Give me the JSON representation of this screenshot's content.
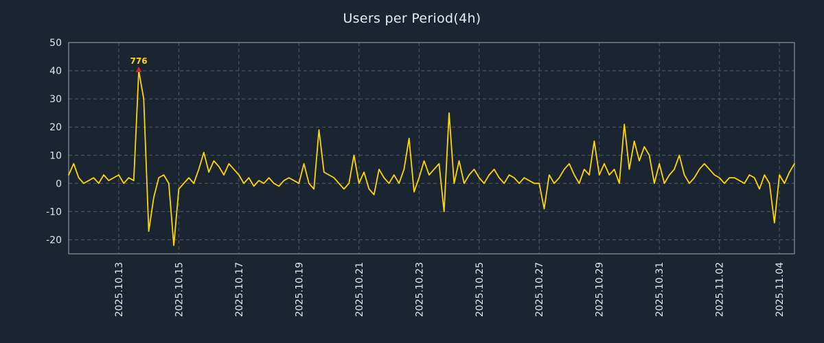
{
  "colors": {
    "background": "#1b2431",
    "line": "#ffd700",
    "grid": "#525a66",
    "axis_border": "#8d949e",
    "text": "#e2e6eb",
    "annotation_text": "#ffd700",
    "marker": "#d62518"
  },
  "chart_data": {
    "type": "line",
    "title": "Users per Period(4h)",
    "xlabel": "",
    "ylabel": "",
    "legend": "none",
    "grid": "dashed",
    "ylim": [
      -25,
      50
    ],
    "y_ticks": [
      50,
      40,
      30,
      20,
      10,
      0,
      -10,
      -20
    ],
    "x_tick_labels": [
      "2025.10.13",
      "2025.10.15",
      "2025.10.17",
      "2025.10.19",
      "2025.10.21",
      "2025.10.23",
      "2025.10.25",
      "2025.10.27",
      "2025.10.29",
      "2025.10.31",
      "2025.11.02",
      "2025.11.04"
    ],
    "x_tick_indices": [
      10,
      22,
      34,
      46,
      58,
      70,
      82,
      94,
      106,
      118,
      130,
      142
    ],
    "values": [
      3,
      7,
      2,
      0,
      1,
      2,
      0,
      3,
      1,
      2,
      3,
      0,
      2,
      1,
      40,
      30,
      -17,
      -5,
      2,
      3,
      0,
      -22,
      -2,
      0,
      2,
      0,
      5,
      11,
      4,
      8,
      6,
      3,
      7,
      5,
      3,
      0,
      2,
      -1,
      1,
      0,
      2,
      0,
      -1,
      1,
      2,
      1,
      0,
      7,
      0,
      -2,
      19,
      4,
      3,
      2,
      0,
      -2,
      0,
      10,
      0,
      4,
      -2,
      -4,
      5,
      2,
      0,
      3,
      0,
      5,
      16,
      -3,
      2,
      8,
      3,
      5,
      7,
      -10,
      25,
      0,
      8,
      0,
      3,
      5,
      2,
      0,
      3,
      5,
      2,
      0,
      3,
      2,
      0,
      2,
      1,
      0,
      0,
      -9,
      3,
      0,
      2,
      5,
      7,
      3,
      0,
      5,
      3,
      15,
      3,
      7,
      3,
      5,
      0,
      21,
      5,
      15,
      8,
      13,
      10,
      0,
      7,
      0,
      3,
      5,
      10,
      3,
      0,
      2,
      5,
      7,
      5,
      3,
      2,
      0,
      2,
      2,
      1,
      0,
      3,
      2,
      -2,
      3,
      0,
      -14,
      3,
      0,
      4,
      7
    ],
    "annotation": {
      "text": "776",
      "index": 14,
      "value_on_axis": 40,
      "marker": "red-triangle-up"
    }
  }
}
